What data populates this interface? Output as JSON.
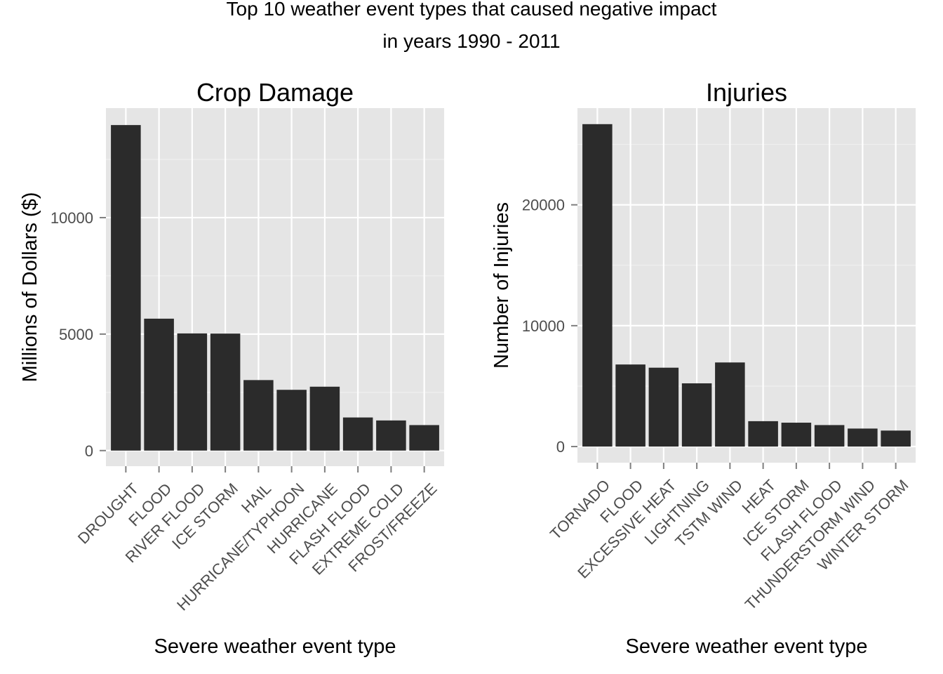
{
  "figure": {
    "title_line1": "Top 10 weather event types that caused negative impact",
    "title_line2": "in years 1990 - 2011"
  },
  "colors": {
    "panel_background": "#e5e5e5",
    "grid_major": "#ffffff",
    "grid_minor": "#f2f2f2",
    "bar_fill": "#2b2b2b",
    "tick_mark": "#7f7f7f",
    "tick_text": "#4d4d4d"
  },
  "chart_data": [
    {
      "type": "bar",
      "title": "Crop Damage",
      "xlabel": "Severe weather event type",
      "ylabel": "Millions of Dollars ($)",
      "categories": [
        "DROUGHT",
        "FLOOD",
        "RIVER FLOOD",
        "ICE STORM",
        "HAIL",
        "HURRICANE/TYPHOON",
        "HURRICANE",
        "FLASH FLOOD",
        "EXTREME COLD",
        "FROST/FREEZE"
      ],
      "values": [
        13973,
        5662,
        5029,
        5022,
        3026,
        2608,
        2742,
        1421,
        1293,
        1094
      ],
      "ylim": [
        -670,
        14700
      ],
      "yticks": [
        0,
        5000,
        10000
      ],
      "yminor": [
        2500,
        7500,
        12500
      ],
      "grid": true
    },
    {
      "type": "bar",
      "title": "Injuries",
      "xlabel": "Severe weather event type",
      "ylabel": "Number of Injuries",
      "categories": [
        "TORNADO",
        "FLOOD",
        "EXCESSIVE HEAT",
        "LIGHTNING",
        "TSTM WIND",
        "HEAT",
        "ICE STORM",
        "FLASH FLOOD",
        "THUNDERSTORM WIND",
        "WINTER STORM"
      ],
      "values": [
        26674,
        6789,
        6525,
        5230,
        6957,
        2100,
        1975,
        1777,
        1488,
        1321
      ],
      "ylim": [
        -1334,
        28000
      ],
      "yticks": [
        0,
        10000,
        20000
      ],
      "yminor": [
        5000,
        15000,
        25000
      ],
      "grid": true
    }
  ]
}
